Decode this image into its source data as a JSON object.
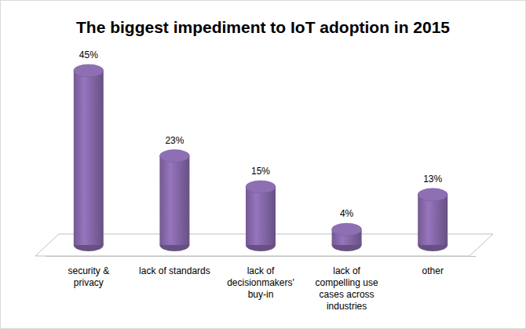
{
  "chart_data": {
    "type": "bar",
    "title": "The biggest impediment to IoT adoption in 2015",
    "categories": [
      "security & privacy",
      "lack of standards",
      "lack of decisionmakers' buy-in",
      "lack of compelling use cases across industries",
      "other"
    ],
    "values": [
      45,
      23,
      15,
      4,
      13
    ],
    "value_labels": [
      "45%",
      "23%",
      "15%",
      "4%",
      "13%"
    ],
    "color": "#8064a2",
    "data_labels": true,
    "tick_labels": "x"
  }
}
